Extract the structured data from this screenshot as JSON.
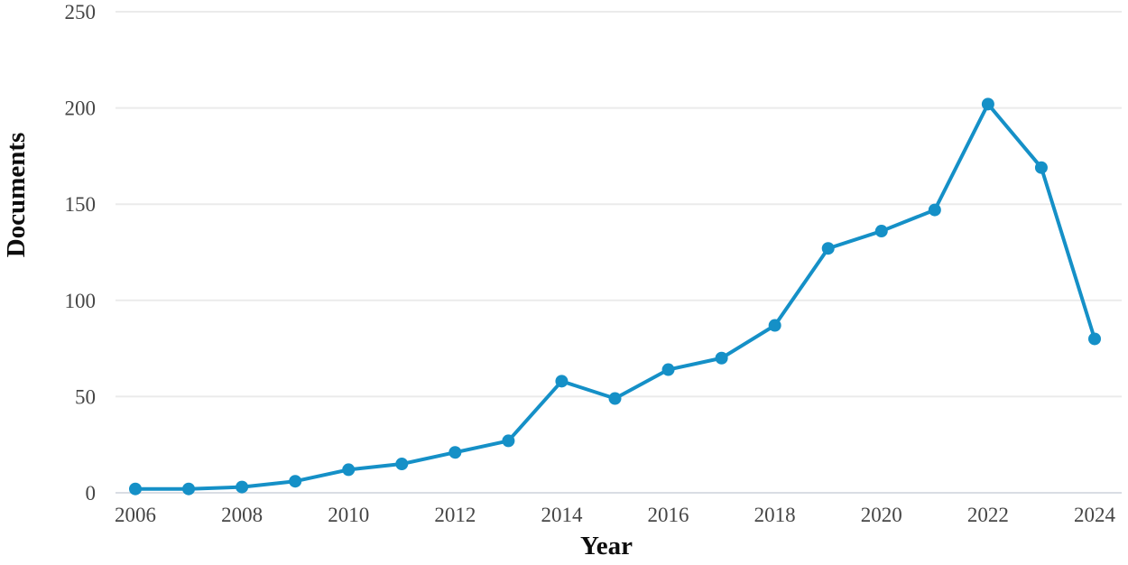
{
  "chart_data": {
    "type": "line",
    "title": "",
    "xlabel": "Year",
    "ylabel": "Documents",
    "series": [
      {
        "name": "Documents",
        "x": [
          2006,
          2007,
          2008,
          2009,
          2010,
          2011,
          2012,
          2013,
          2014,
          2015,
          2016,
          2017,
          2018,
          2019,
          2020,
          2021,
          2022,
          2023,
          2024
        ],
        "values": [
          2,
          2,
          3,
          6,
          12,
          15,
          21,
          27,
          58,
          49,
          64,
          70,
          87,
          127,
          136,
          147,
          202,
          169,
          80
        ]
      }
    ],
    "xlim": [
      2005.6,
      2024.5
    ],
    "ylim": [
      0,
      250
    ],
    "yticks": [
      0,
      50,
      100,
      150,
      200,
      250
    ],
    "xticks": [
      2006,
      2008,
      2010,
      2012,
      2014,
      2016,
      2018,
      2020,
      2022,
      2024
    ],
    "grid": "horizontal",
    "legend_position": "none",
    "line_color": "#1590c7",
    "marker_color": "#1590c7",
    "grid_color": "#ebebeb",
    "baseline_color": "#d9dde4",
    "tick_label_color": "#454545",
    "axis_title_color": "#0d0d0d",
    "background_color": "#ffffff"
  }
}
